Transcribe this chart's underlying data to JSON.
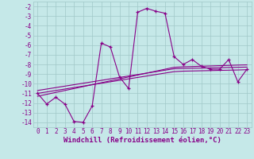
{
  "xlabel": "Windchill (Refroidissement éolien,°C)",
  "hours": [
    0,
    1,
    2,
    3,
    4,
    5,
    6,
    7,
    8,
    9,
    10,
    11,
    12,
    13,
    14,
    15,
    16,
    17,
    18,
    19,
    20,
    21,
    22,
    23
  ],
  "main_line": [
    -11.0,
    -12.1,
    -11.4,
    -12.1,
    -13.9,
    -14.0,
    -12.3,
    -5.8,
    -6.2,
    -9.3,
    -10.5,
    -2.6,
    -2.2,
    -2.5,
    -2.7,
    -7.2,
    -8.0,
    -7.5,
    -8.2,
    -8.5,
    -8.5,
    -7.5,
    -9.8,
    -8.5
  ],
  "reg_line1": [
    -11.0,
    -10.85,
    -10.7,
    -10.55,
    -10.4,
    -10.25,
    -10.1,
    -9.95,
    -9.8,
    -9.65,
    -9.5,
    -9.35,
    -9.2,
    -9.05,
    -8.9,
    -8.75,
    -8.7,
    -8.68,
    -8.66,
    -8.64,
    -8.62,
    -8.6,
    -8.58,
    -8.55
  ],
  "reg_line2": [
    -11.3,
    -11.1,
    -10.9,
    -10.7,
    -10.5,
    -10.3,
    -10.1,
    -9.9,
    -9.7,
    -9.5,
    -9.3,
    -9.1,
    -8.9,
    -8.7,
    -8.5,
    -8.3,
    -8.25,
    -8.22,
    -8.19,
    -8.16,
    -8.13,
    -8.1,
    -8.07,
    -8.05
  ],
  "reg_line3": [
    -10.7,
    -10.55,
    -10.4,
    -10.25,
    -10.1,
    -9.95,
    -9.8,
    -9.65,
    -9.5,
    -9.35,
    -9.2,
    -9.05,
    -8.9,
    -8.75,
    -8.6,
    -8.45,
    -8.42,
    -8.4,
    -8.38,
    -8.36,
    -8.34,
    -8.32,
    -8.3,
    -8.28
  ],
  "line_color": "#880088",
  "bg_color": "#c5e8e8",
  "grid_color": "#a0c8c8",
  "ylim": [
    -14.5,
    -1.5
  ],
  "yticks": [
    -2,
    -3,
    -4,
    -5,
    -6,
    -7,
    -8,
    -9,
    -10,
    -11,
    -12,
    -13,
    -14
  ],
  "tick_fontsize": 5.5,
  "label_fontsize": 6.5
}
